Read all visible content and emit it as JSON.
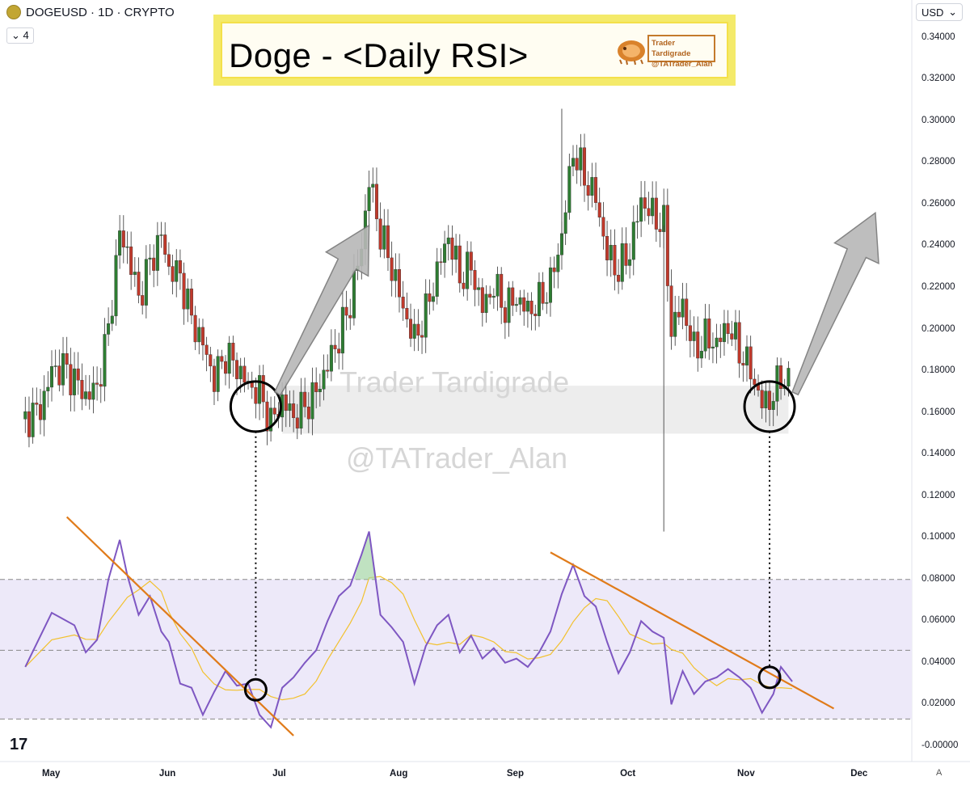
{
  "header": {
    "symbol": "DOGEUSD · 1D · CRYPTO",
    "indicator_count": "4",
    "currency": "USD",
    "auto_label": "A"
  },
  "title": {
    "text": "Doge - <Daily RSI>",
    "author_name": "Trader Tardigrade",
    "author_handle": "@TATrader_Alan"
  },
  "watermark": {
    "line1": "Trader Tardigrade",
    "line2": "@TATrader_Alan"
  },
  "branding": {
    "logo_text": "17"
  },
  "colors": {
    "up": "#2e7d32",
    "down": "#c0392b",
    "rsi": "#7e57c2",
    "rsi_ma": "#f2c12e",
    "trendline": "#e07b1a",
    "rsi_band": "#ede9f9"
  },
  "chart_data": {
    "type": "candlestick",
    "title": "Doge - <Daily RSI>",
    "ylabel": "USD",
    "ylim": [
      -0.002,
      0.348
    ],
    "y_ticks": [
      "0.34000",
      "0.32000",
      "0.30000",
      "0.28000",
      "0.26000",
      "0.24000",
      "0.22000",
      "0.20000",
      "0.18000",
      "0.16000",
      "0.14000",
      "0.12000",
      "0.10000",
      "0.08000",
      "0.06000",
      "0.04000",
      "0.02000",
      "-0.00000"
    ],
    "x_ticks": [
      "May",
      "Jun",
      "Jul",
      "Aug",
      "Sep",
      "Oct",
      "Nov",
      "Dec"
    ],
    "price_close_path": [
      [
        "Apr 24",
        0.157
      ],
      [
        "Apr 28",
        0.162
      ],
      [
        "May 1",
        0.18
      ],
      [
        "May 4",
        0.182
      ],
      [
        "May 7",
        0.176
      ],
      [
        "May 10",
        0.168
      ],
      [
        "May 13",
        0.172
      ],
      [
        "May 16",
        0.2
      ],
      [
        "May 19",
        0.246
      ],
      [
        "May 21",
        0.238
      ],
      [
        "May 24",
        0.215
      ],
      [
        "May 27",
        0.232
      ],
      [
        "May 30",
        0.245
      ],
      [
        "Jun 1",
        0.229
      ],
      [
        "Jun 4",
        0.226
      ],
      [
        "Jun 7",
        0.205
      ],
      [
        "Jun 10",
        0.193
      ],
      [
        "Jun 13",
        0.176
      ],
      [
        "Jun 16",
        0.188
      ],
      [
        "Jun 19",
        0.182
      ],
      [
        "Jun 22",
        0.173
      ],
      [
        "Jun 25",
        0.17
      ],
      [
        "Jun 28",
        0.155
      ],
      [
        "Jul 1",
        0.166
      ],
      [
        "Jul 4",
        0.158
      ],
      [
        "Jul 7",
        0.163
      ],
      [
        "Jul 10",
        0.17
      ],
      [
        "Jul 13",
        0.183
      ],
      [
        "Jul 16",
        0.196
      ],
      [
        "Jul 19",
        0.213
      ],
      [
        "Jul 22",
        0.24
      ],
      [
        "Jul 24",
        0.272
      ],
      [
        "Jul 27",
        0.246
      ],
      [
        "Jul 30",
        0.23
      ],
      [
        "Aug 2",
        0.21
      ],
      [
        "Aug 5",
        0.195
      ],
      [
        "Aug 8",
        0.208
      ],
      [
        "Aug 11",
        0.228
      ],
      [
        "Aug 14",
        0.245
      ],
      [
        "Aug 17",
        0.225
      ],
      [
        "Aug 20",
        0.23
      ],
      [
        "Aug 23",
        0.21
      ],
      [
        "Aug 26",
        0.221
      ],
      [
        "Aug 29",
        0.21
      ],
      [
        "Sep 1",
        0.215
      ],
      [
        "Sep 4",
        0.209
      ],
      [
        "Sep 7",
        0.213
      ],
      [
        "Sep 10",
        0.222
      ],
      [
        "Sep 13",
        0.245
      ],
      [
        "Sep 16",
        0.286
      ],
      [
        "Sep 19",
        0.273
      ],
      [
        "Sep 22",
        0.263
      ],
      [
        "Sep 25",
        0.236
      ],
      [
        "Sep 28",
        0.228
      ],
      [
        "Oct 1",
        0.238
      ],
      [
        "Oct 4",
        0.262
      ],
      [
        "Oct 7",
        0.255
      ],
      [
        "Oct 10",
        0.25
      ],
      [
        "Oct 12",
        0.2
      ],
      [
        "Oct 15",
        0.212
      ],
      [
        "Oct 18",
        0.19
      ],
      [
        "Oct 21",
        0.196
      ],
      [
        "Oct 24",
        0.193
      ],
      [
        "Oct 27",
        0.202
      ],
      [
        "Oct 30",
        0.19
      ],
      [
        "Nov 2",
        0.18
      ],
      [
        "Nov 5",
        0.164
      ],
      [
        "Nov 8",
        0.168
      ],
      [
        "Nov 10",
        0.178
      ],
      [
        "Nov 13",
        0.172
      ]
    ],
    "notable_wicks": [
      [
        "Sep 13",
        0.306
      ],
      [
        "Oct 10",
        0.103
      ]
    ],
    "highlight_zone": [
      0.15,
      0.173
    ],
    "rsi": {
      "upper_band": 0.08,
      "mid_line": 0.046,
      "lower_band": 0.013,
      "path": [
        [
          "Apr 24",
          0.038
        ],
        [
          "May 1",
          0.064
        ],
        [
          "May 7",
          0.058
        ],
        [
          "May 10",
          0.045
        ],
        [
          "May 13",
          0.051
        ],
        [
          "May 16",
          0.08
        ],
        [
          "May 19",
          0.099
        ],
        [
          "May 21",
          0.082
        ],
        [
          "May 24",
          0.063
        ],
        [
          "May 27",
          0.072
        ],
        [
          "May 30",
          0.055
        ],
        [
          "Jun 1",
          0.05
        ],
        [
          "Jun 4",
          0.03
        ],
        [
          "Jun 7",
          0.028
        ],
        [
          "Jun 10",
          0.015
        ],
        [
          "Jun 13",
          0.026
        ],
        [
          "Jun 16",
          0.036
        ],
        [
          "Jun 19",
          0.029
        ],
        [
          "Jun 22",
          0.03
        ],
        [
          "Jun 25",
          0.015
        ],
        [
          "Jun 28",
          0.009
        ],
        [
          "Jul 1",
          0.028
        ],
        [
          "Jul 4",
          0.033
        ],
        [
          "Jul 7",
          0.04
        ],
        [
          "Jul 10",
          0.046
        ],
        [
          "Jul 13",
          0.06
        ],
        [
          "Jul 16",
          0.072
        ],
        [
          "Jul 19",
          0.077
        ],
        [
          "Jul 22",
          0.092
        ],
        [
          "Jul 24",
          0.103
        ],
        [
          "Jul 27",
          0.063
        ],
        [
          "Jul 30",
          0.057
        ],
        [
          "Aug 2",
          0.05
        ],
        [
          "Aug 5",
          0.03
        ],
        [
          "Aug 8",
          0.048
        ],
        [
          "Aug 11",
          0.058
        ],
        [
          "Aug 14",
          0.063
        ],
        [
          "Aug 17",
          0.045
        ],
        [
          "Aug 20",
          0.053
        ],
        [
          "Aug 23",
          0.042
        ],
        [
          "Aug 26",
          0.047
        ],
        [
          "Aug 29",
          0.04
        ],
        [
          "Sep 1",
          0.042
        ],
        [
          "Sep 4",
          0.038
        ],
        [
          "Sep 7",
          0.045
        ],
        [
          "Sep 10",
          0.055
        ],
        [
          "Sep 13",
          0.073
        ],
        [
          "Sep 16",
          0.087
        ],
        [
          "Sep 19",
          0.072
        ],
        [
          "Sep 22",
          0.067
        ],
        [
          "Sep 25",
          0.05
        ],
        [
          "Sep 28",
          0.035
        ],
        [
          "Oct 1",
          0.045
        ],
        [
          "Oct 4",
          0.06
        ],
        [
          "Oct 7",
          0.055
        ],
        [
          "Oct 10",
          0.052
        ],
        [
          "Oct 12",
          0.02
        ],
        [
          "Oct 15",
          0.036
        ],
        [
          "Oct 18",
          0.025
        ],
        [
          "Oct 21",
          0.031
        ],
        [
          "Oct 24",
          0.033
        ],
        [
          "Oct 27",
          0.037
        ],
        [
          "Oct 30",
          0.033
        ],
        [
          "Nov 2",
          0.028
        ],
        [
          "Nov 5",
          0.016
        ],
        [
          "Nov 8",
          0.025
        ],
        [
          "Nov 10",
          0.038
        ],
        [
          "Nov 13",
          0.031
        ]
      ]
    },
    "annotations": [
      "RSI downtrend break near Jun 24 with price low",
      "RSI downtrend break near Nov 8 with price low",
      "Projected upward arrows after each breakout"
    ]
  }
}
